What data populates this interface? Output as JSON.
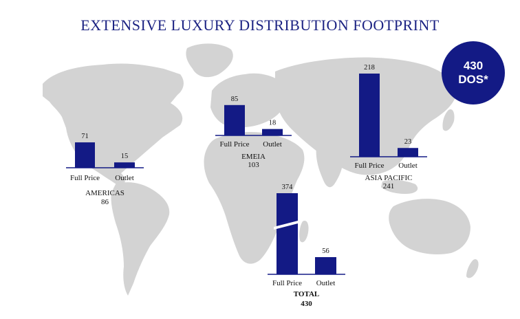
{
  "page": {
    "title": "EXTENSIVE LUXURY DISTRIBUTION FOOTPRINT"
  },
  "badge": {
    "value": "430",
    "label": "DOS*"
  },
  "colors": {
    "bar": "#131a85",
    "map": "#d3d3d3",
    "title": "#1c2383"
  },
  "chart_data": [
    {
      "type": "bar",
      "region": "AMERICAS",
      "total": "86",
      "categories": [
        "Full Price",
        "Outlet"
      ],
      "values": [
        71,
        15
      ]
    },
    {
      "type": "bar",
      "region": "EMEIA",
      "total": "103",
      "categories": [
        "Full Price",
        "Outlet"
      ],
      "values": [
        85,
        18
      ]
    },
    {
      "type": "bar",
      "region": "ASIA PACIFIC",
      "total": "241",
      "categories": [
        "Full Price",
        "Outlet"
      ],
      "values": [
        218,
        23
      ]
    },
    {
      "type": "bar",
      "region": "TOTAL",
      "total": "430",
      "axis_break": true,
      "categories": [
        "Full Price",
        "Outlet"
      ],
      "values": [
        374,
        56
      ]
    }
  ]
}
